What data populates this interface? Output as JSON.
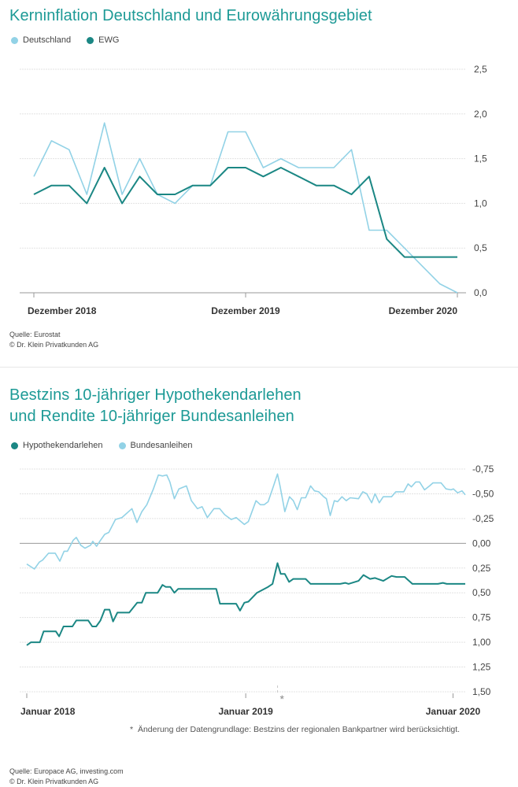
{
  "colors": {
    "dark": "#1b8784",
    "light": "#92d2e6",
    "title": "#1d9a96"
  },
  "chart_data": [
    {
      "type": "line",
      "title": "Kerninflation Deutschland und Eurowährungsgebiet",
      "legend": [
        "Deutschland",
        "EWG"
      ],
      "x_tick_labels": [
        "Dezember 2018",
        "Dezember 2019",
        "Dezember 2020"
      ],
      "x_tick_positions": [
        0,
        12,
        24
      ],
      "y_ticks": [
        0,
        0.5,
        1,
        1.5,
        2,
        2.5
      ],
      "y_tick_labels": [
        "0,0",
        "0,5",
        "1,0",
        "1,5",
        "2,0",
        "2,5"
      ],
      "ylim": [
        0,
        2.5
      ],
      "xlabel": "",
      "ylabel": "",
      "series": [
        {
          "name": "Deutschland",
          "color": "light",
          "values": [
            1.3,
            1.7,
            1.6,
            1.1,
            1.9,
            1.1,
            1.5,
            1.1,
            1.0,
            1.2,
            1.2,
            1.8,
            1.8,
            1.4,
            1.5,
            1.4,
            1.4,
            1.4,
            1.6,
            0.7,
            0.7,
            0.5,
            0.3,
            0.1,
            0.0
          ]
        },
        {
          "name": "EWG",
          "color": "dark",
          "values": [
            1.1,
            1.2,
            1.2,
            1.0,
            1.4,
            1.0,
            1.3,
            1.1,
            1.1,
            1.2,
            1.2,
            1.4,
            1.4,
            1.3,
            1.4,
            1.3,
            1.2,
            1.2,
            1.1,
            1.3,
            0.6,
            0.4,
            0.4,
            0.4,
            0.4
          ]
        }
      ],
      "source": "Quelle: Eurostat",
      "copyright": "© Dr. Klein Privatkunden AG"
    },
    {
      "type": "line",
      "title_line1": "Bestzins 10-jähriger Hypothekendarlehen",
      "title_line2": "und Rendite 10-jähriger Bundesanleihen",
      "legend": [
        "Hypothekendarlehen",
        "Bundesanleihen"
      ],
      "x_unit": "months since Januar 2018",
      "x_tick_labels": [
        "Januar 2018",
        "Januar 2019",
        "Januar 2020"
      ],
      "x_tick_positions": [
        0,
        12.33,
        24
      ],
      "y_ticks": [
        -0.75,
        -0.5,
        -0.25,
        0,
        0.25,
        0.5,
        0.75,
        1,
        1.25,
        1.5
      ],
      "y_tick_labels": [
        "-0,75",
        "-0,50",
        "-0,25",
        "0,00",
        "0,25",
        "0,50",
        "0,75",
        "1,00",
        "1,25",
        "1,50"
      ],
      "ylim": [
        -0.75,
        1.5
      ],
      "xlim": [
        0,
        24.69
      ],
      "marker_x": 14.12,
      "marker_label": "*",
      "series": [
        {
          "name": "Hypothekendarlehen",
          "color": "dark",
          "points": [
            [
              0,
              1.03
            ],
            [
              0.24,
              1.0
            ],
            [
              0.74,
              1.0
            ],
            [
              0.95,
              0.89
            ],
            [
              1.64,
              0.89
            ],
            [
              1.82,
              0.94
            ],
            [
              2.07,
              0.84
            ],
            [
              2.57,
              0.84
            ],
            [
              2.79,
              0.78
            ],
            [
              3.46,
              0.78
            ],
            [
              3.69,
              0.84
            ],
            [
              3.91,
              0.84
            ],
            [
              4.15,
              0.78
            ],
            [
              4.39,
              0.67
            ],
            [
              4.66,
              0.67
            ],
            [
              4.86,
              0.79
            ],
            [
              5.1,
              0.7
            ],
            [
              5.77,
              0.7
            ],
            [
              6.22,
              0.6
            ],
            [
              6.48,
              0.6
            ],
            [
              6.7,
              0.5
            ],
            [
              7.37,
              0.5
            ],
            [
              7.64,
              0.42
            ],
            [
              7.82,
              0.44
            ],
            [
              8.08,
              0.44
            ],
            [
              8.31,
              0.5
            ],
            [
              8.53,
              0.46
            ],
            [
              10.67,
              0.46
            ],
            [
              10.88,
              0.61
            ],
            [
              11.79,
              0.61
            ],
            [
              12.01,
              0.68
            ],
            [
              12.25,
              0.6
            ],
            [
              12.48,
              0.59
            ],
            [
              12.96,
              0.5
            ],
            [
              13.59,
              0.44
            ],
            [
              13.84,
              0.41
            ],
            [
              14.12,
              0.2
            ],
            [
              14.3,
              0.31
            ],
            [
              14.53,
              0.31
            ],
            [
              14.77,
              0.39
            ],
            [
              15.01,
              0.36
            ],
            [
              15.7,
              0.36
            ],
            [
              15.98,
              0.41
            ],
            [
              17.65,
              0.41
            ],
            [
              17.93,
              0.4
            ],
            [
              18.12,
              0.41
            ],
            [
              18.68,
              0.38
            ],
            [
              18.96,
              0.32
            ],
            [
              19.33,
              0.36
            ],
            [
              19.61,
              0.35
            ],
            [
              20.07,
              0.38
            ],
            [
              20.54,
              0.33
            ],
            [
              20.82,
              0.34
            ],
            [
              21.28,
              0.34
            ],
            [
              21.71,
              0.41
            ],
            [
              23.15,
              0.41
            ],
            [
              23.43,
              0.4
            ],
            [
              23.65,
              0.41
            ],
            [
              24.69,
              0.41
            ]
          ]
        },
        {
          "name": "Bundesanleihen",
          "color": "light",
          "points": [
            [
              0,
              0.21
            ],
            [
              0.43,
              0.26
            ],
            [
              0.71,
              0.19
            ],
            [
              0.89,
              0.17
            ],
            [
              1.23,
              0.1
            ],
            [
              1.6,
              0.1
            ],
            [
              1.86,
              0.18
            ],
            [
              2.1,
              0.08
            ],
            [
              2.29,
              0.08
            ],
            [
              2.61,
              -0.03
            ],
            [
              2.79,
              -0.06
            ],
            [
              3.04,
              0.02
            ],
            [
              3.28,
              0.05
            ],
            [
              3.59,
              0.02
            ],
            [
              3.72,
              -0.02
            ],
            [
              3.93,
              0.03
            ],
            [
              4.15,
              -0.03
            ],
            [
              4.39,
              -0.09
            ],
            [
              4.62,
              -0.11
            ],
            [
              4.99,
              -0.24
            ],
            [
              5.36,
              -0.26
            ],
            [
              5.92,
              -0.35
            ],
            [
              6.2,
              -0.21
            ],
            [
              6.48,
              -0.32
            ],
            [
              6.76,
              -0.39
            ],
            [
              7.13,
              -0.55
            ],
            [
              7.41,
              -0.69
            ],
            [
              7.64,
              -0.68
            ],
            [
              7.88,
              -0.69
            ],
            [
              8.06,
              -0.62
            ],
            [
              8.31,
              -0.45
            ],
            [
              8.57,
              -0.55
            ],
            [
              8.99,
              -0.58
            ],
            [
              9.27,
              -0.43
            ],
            [
              9.61,
              -0.35
            ],
            [
              9.87,
              -0.37
            ],
            [
              10.17,
              -0.26
            ],
            [
              10.54,
              -0.35
            ],
            [
              10.86,
              -0.35
            ],
            [
              11.14,
              -0.29
            ],
            [
              11.51,
              -0.24
            ],
            [
              11.79,
              -0.26
            ],
            [
              12.25,
              -0.19
            ],
            [
              12.48,
              -0.22
            ],
            [
              12.91,
              -0.43
            ],
            [
              13.15,
              -0.39
            ],
            [
              13.37,
              -0.39
            ],
            [
              13.59,
              -0.42
            ],
            [
              13.84,
              -0.55
            ],
            [
              14.12,
              -0.7
            ],
            [
              14.26,
              -0.58
            ],
            [
              14.53,
              -0.32
            ],
            [
              14.79,
              -0.47
            ],
            [
              15.01,
              -0.43
            ],
            [
              15.23,
              -0.34
            ],
            [
              15.46,
              -0.46
            ],
            [
              15.7,
              -0.46
            ],
            [
              15.98,
              -0.58
            ],
            [
              16.2,
              -0.53
            ],
            [
              16.44,
              -0.52
            ],
            [
              16.72,
              -0.47
            ],
            [
              16.87,
              -0.45
            ],
            [
              17.09,
              -0.28
            ],
            [
              17.32,
              -0.43
            ],
            [
              17.5,
              -0.42
            ],
            [
              17.75,
              -0.47
            ],
            [
              17.99,
              -0.43
            ],
            [
              18.21,
              -0.46
            ],
            [
              18.68,
              -0.45
            ],
            [
              18.92,
              -0.52
            ],
            [
              19.14,
              -0.5
            ],
            [
              19.42,
              -0.41
            ],
            [
              19.61,
              -0.5
            ],
            [
              19.85,
              -0.41
            ],
            [
              20.07,
              -0.47
            ],
            [
              20.54,
              -0.47
            ],
            [
              20.78,
              -0.52
            ],
            [
              21.23,
              -0.52
            ],
            [
              21.47,
              -0.6
            ],
            [
              21.66,
              -0.57
            ],
            [
              21.9,
              -0.62
            ],
            [
              22.12,
              -0.62
            ],
            [
              22.4,
              -0.54
            ],
            [
              22.68,
              -0.58
            ],
            [
              22.87,
              -0.61
            ],
            [
              23.33,
              -0.61
            ],
            [
              23.61,
              -0.55
            ],
            [
              23.89,
              -0.54
            ],
            [
              24.02,
              -0.55
            ],
            [
              24.26,
              -0.51
            ],
            [
              24.51,
              -0.53
            ],
            [
              24.69,
              -0.49
            ]
          ]
        }
      ],
      "footnote": "Änderung der Datengrundlage: Bestzins der regionalen Bankpartner wird berücksichtigt.",
      "source": "Quelle: Europace AG, investing.com",
      "copyright": "© Dr. Klein Privatkunden AG"
    }
  ]
}
